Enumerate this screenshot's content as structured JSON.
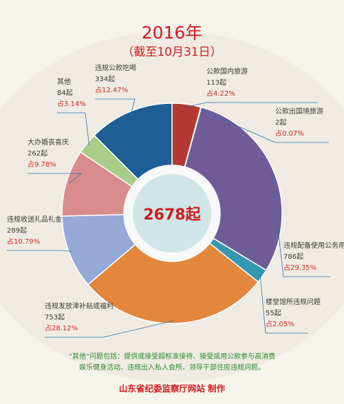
{
  "chart_data": {
    "type": "pie",
    "title": "2016年",
    "subtitle": "（截至10月31日）",
    "total_label": "2678起",
    "categories": [
      "公款国内旅游",
      "公款出国境旅游",
      "违规配备使用公务用车",
      "楼堂馆所违规问题",
      "违规发放津补贴或福利",
      "违规收送礼品礼金",
      "大办婚丧喜庆",
      "其他",
      "违规公款吃喝"
    ],
    "values": [
      113,
      2,
      786,
      55,
      753,
      289,
      262,
      84,
      334
    ],
    "value_labels": [
      "113起",
      "2起",
      "786起",
      "55起",
      "753起",
      "289起",
      "262起",
      "84起",
      "334起"
    ],
    "percent_labels": [
      "占4.22%",
      "占0.07%",
      "占29.35%",
      "占2.05%",
      "占28.12%",
      "占10.79%",
      "占9.78%",
      "占3.14%",
      "占12.47%"
    ],
    "colors": [
      "#b23a32",
      "#c2c2c2",
      "#6f5c96",
      "#3697b3",
      "#e2873c",
      "#94a9d6",
      "#d98c8c",
      "#a9cc89",
      "#1d5f96"
    ],
    "footnote": [
      "“其他”问题包括：提供或接受超标准接待、接受或用公款参与高消费",
      "娱乐健身活动、违规出入私人会所、领导干部住房违规问题。"
    ],
    "source": "山东省纪委监察厅网站  制作"
  }
}
